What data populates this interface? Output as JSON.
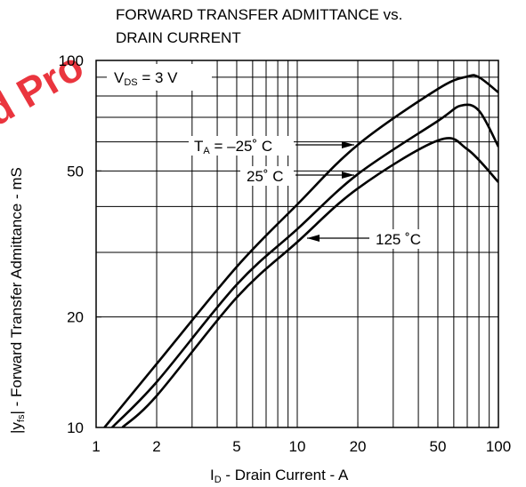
{
  "chart_data": {
    "type": "line",
    "title_lines": [
      "FORWARD TRANSFER ADMITTANCE vs.",
      "DRAIN CURRENT"
    ],
    "watermark": "d Pro",
    "condition": {
      "main": "V",
      "sub": "DS",
      "rest": " = 3 V"
    },
    "x_label": {
      "main": "I",
      "sub": "D",
      "rest": " - Drain Current - A"
    },
    "y_label": {
      "main": "|y",
      "sub": "fs",
      "rest": "| - Forward Transfer Admittance - mS"
    },
    "xscale": "log",
    "yscale": "log",
    "xlim": [
      1,
      100
    ],
    "ylim": [
      10,
      100
    ],
    "xticks": [
      1,
      2,
      5,
      10,
      20,
      50,
      100
    ],
    "yticks": [
      10,
      20,
      50,
      100
    ],
    "xgrid": [
      1,
      2,
      3,
      4,
      5,
      6,
      7,
      8,
      9,
      10,
      20,
      30,
      40,
      50,
      60,
      70,
      80,
      90,
      100
    ],
    "ygrid": [
      10,
      20,
      30,
      40,
      50,
      60,
      70,
      80,
      90,
      100
    ],
    "grid": true,
    "series": [
      {
        "name": {
          "main": "T",
          "sub": "A",
          "rest": " = –25˚ C"
        },
        "color": "#000000",
        "x": [
          1.1,
          2,
          5,
          10,
          20,
          50,
          70,
          80,
          100
        ],
        "values": [
          10,
          14.9,
          27.4,
          40.5,
          58.9,
          83.6,
          90.4,
          90,
          81.8
        ]
      },
      {
        "name": {
          "main": "25˚ C"
        },
        "color": "#000000",
        "x": [
          1.2,
          2,
          5,
          10,
          20,
          50,
          65,
          80,
          100
        ],
        "values": [
          10,
          13.3,
          24.5,
          34.7,
          49,
          68.4,
          75.3,
          73,
          58.2
        ]
      },
      {
        "name": {
          "main": "125 ˚C"
        },
        "color": "#000000",
        "x": [
          1.35,
          2,
          5,
          10,
          20,
          50,
          70,
          100
        ],
        "values": [
          10,
          12.2,
          22.6,
          32,
          44.8,
          60.5,
          57.3,
          46.6
        ]
      }
    ]
  }
}
